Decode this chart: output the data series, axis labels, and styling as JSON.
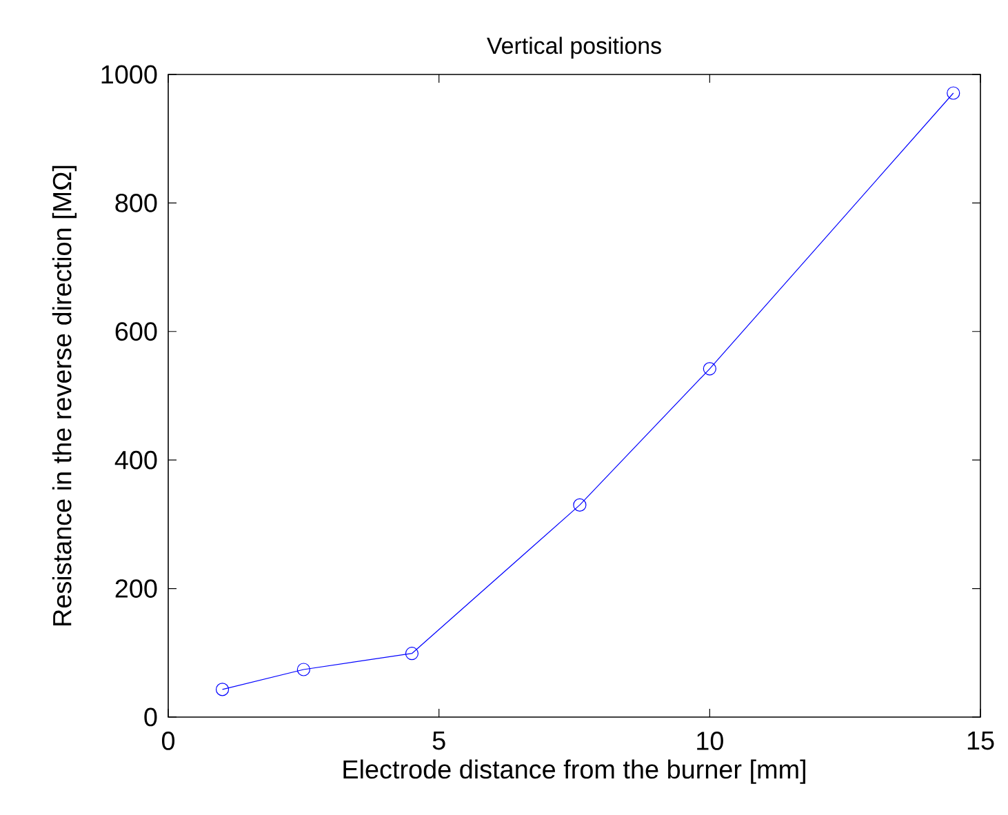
{
  "chart_data": {
    "type": "line",
    "title": "Vertical positions",
    "xlabel": "Electrode distance from the burner [mm]",
    "ylabel": "Resistance in the reverse direction [MΩ]",
    "x": [
      1,
      2.5,
      4.5,
      7.6,
      10,
      14.5
    ],
    "series": [
      {
        "color": "#0000ff",
        "values": [
          43,
          74,
          99,
          330,
          542,
          971
        ]
      }
    ],
    "xlim": [
      0,
      15
    ],
    "ylim": [
      0,
      1000
    ],
    "xticks": [
      0,
      5,
      10,
      15
    ],
    "yticks": [
      0,
      200,
      400,
      600,
      800,
      1000
    ],
    "marker": "circle",
    "line_style": "solid"
  }
}
